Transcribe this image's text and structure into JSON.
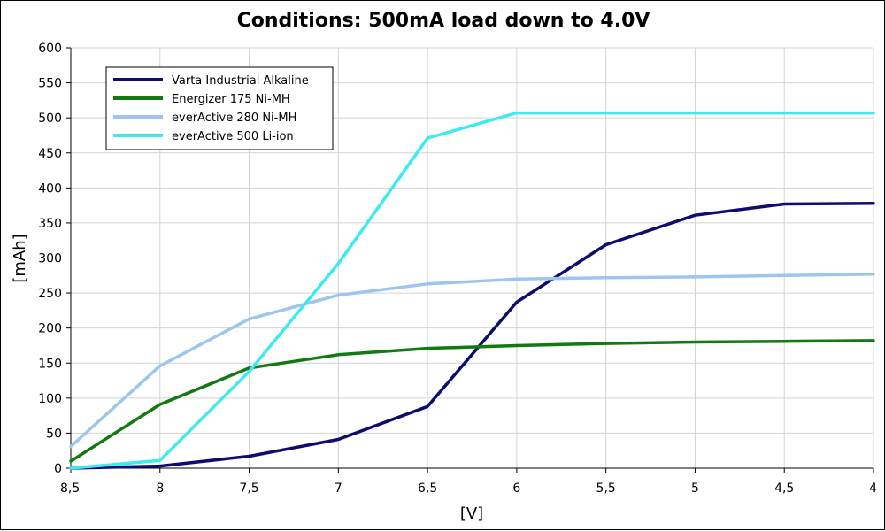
{
  "chart_data": {
    "type": "line",
    "title": "Conditions: 500mA load down to 4.0V",
    "xlabel": "[V]",
    "ylabel": "[mAh]",
    "x": [
      8.5,
      8,
      7.5,
      7,
      6.5,
      6,
      5.5,
      5,
      4.5,
      4
    ],
    "x_tick_labels": [
      "8,5",
      "8",
      "7,5",
      "7",
      "6,5",
      "6",
      "5,5",
      "5",
      "4,5",
      "4"
    ],
    "xlim": [
      8.5,
      4
    ],
    "ylim": [
      0,
      600
    ],
    "y_ticks": [
      0,
      50,
      100,
      150,
      200,
      250,
      300,
      350,
      400,
      450,
      500,
      550,
      600
    ],
    "grid": true,
    "legend_position": "top-left",
    "series": [
      {
        "name": "Varta Industrial Alkaline",
        "color": "#0d0d6e",
        "values": [
          0,
          3,
          17,
          41,
          88,
          237,
          319,
          361,
          377,
          378
        ]
      },
      {
        "name": "Energizer 175 Ni-MH",
        "color": "#137a13",
        "values": [
          10,
          91,
          143,
          162,
          171,
          175,
          178,
          180,
          181,
          182
        ]
      },
      {
        "name": "everActive 280 Ni-MH",
        "color": "#9ec5ef",
        "values": [
          31,
          146,
          213,
          247,
          263,
          270,
          272,
          273,
          275,
          277
        ]
      },
      {
        "name": "everActive 500 Li-ion",
        "color": "#3ceaf0",
        "values": [
          0,
          11,
          138,
          292,
          471,
          507,
          507,
          507,
          507,
          507
        ]
      }
    ]
  }
}
